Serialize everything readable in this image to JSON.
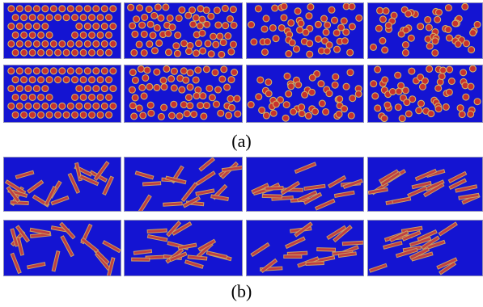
{
  "figure": {
    "caption_a": "(a)",
    "caption_b": "(b)"
  },
  "colors": {
    "background": "#1414d2",
    "particle_fill": "#c8322d",
    "particle_rim": "#d2b464",
    "rod_fill": "#c04040",
    "rod_rim": "#c8a064"
  }
}
